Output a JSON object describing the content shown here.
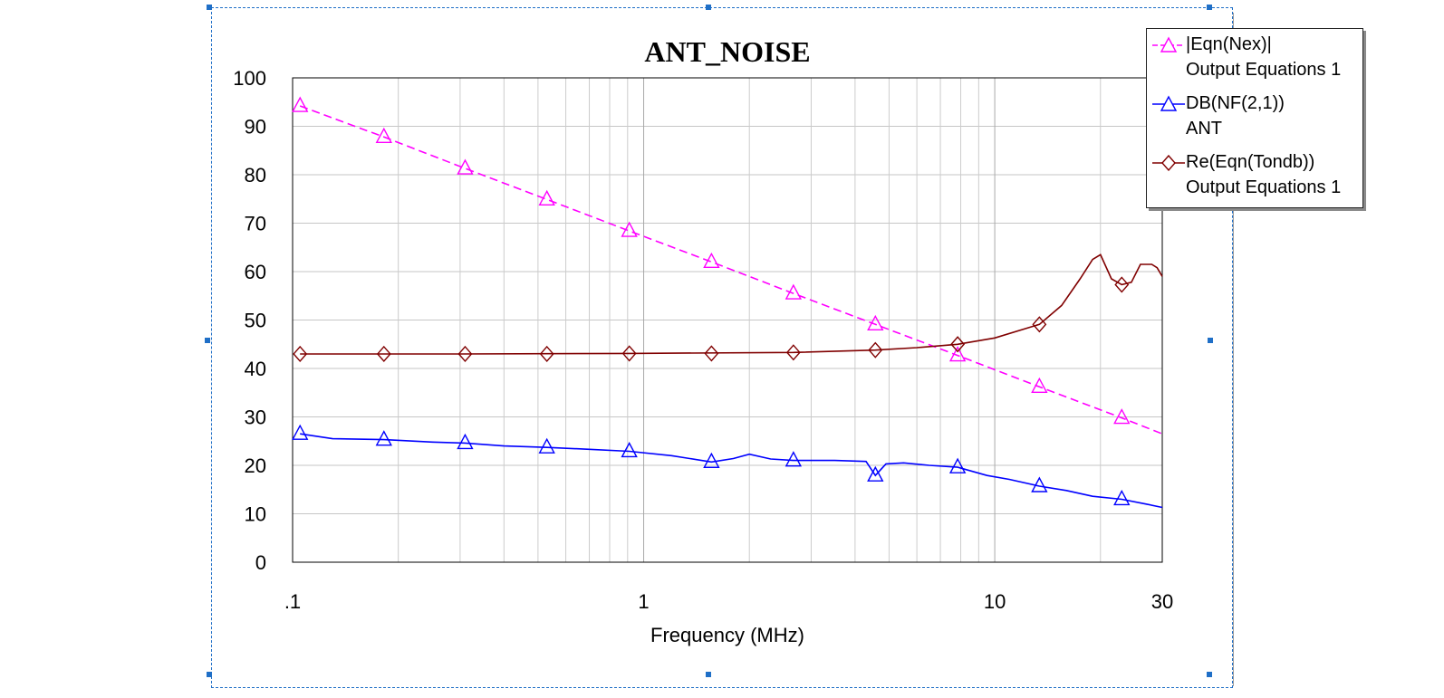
{
  "chart_data": {
    "type": "line",
    "title": "ANT_NOISE",
    "xlabel": "Frequency (MHz)",
    "ylabel": "",
    "xscale": "log",
    "xlim": [
      0.1,
      30
    ],
    "ylim": [
      0,
      100
    ],
    "x_ticks": [
      ".1",
      "1",
      "10",
      "30"
    ],
    "y_ticks": [
      "0",
      "10",
      "20",
      "30",
      "40",
      "50",
      "60",
      "70",
      "80",
      "90",
      "100"
    ],
    "grid": true,
    "legend_position": "top-right",
    "series": [
      {
        "name": "|Eqn(Nex)|",
        "subtitle": "Output Equations 1",
        "color": "#ff00ff",
        "marker": "triangle",
        "line_style": "dashed",
        "x": [
          0.105,
          0.182,
          0.31,
          0.53,
          0.91,
          1.56,
          2.67,
          4.57,
          7.84,
          13.4,
          23.0,
          30.0
        ],
        "y": [
          94.2,
          87.8,
          81.3,
          74.9,
          68.4,
          62.0,
          55.5,
          49.1,
          42.7,
          36.2,
          29.8,
          26.5
        ],
        "marker_x": [
          0.105,
          0.182,
          0.31,
          0.53,
          0.91,
          1.56,
          2.67,
          4.57,
          7.84,
          13.4,
          23.0
        ],
        "marker_y": [
          94.2,
          87.8,
          81.3,
          74.9,
          68.4,
          62.0,
          55.5,
          49.1,
          42.7,
          36.2,
          29.8
        ]
      },
      {
        "name": "DB(NF(2,1))",
        "subtitle": "ANT",
        "color": "#0000ff",
        "marker": "triangle",
        "line_style": "solid",
        "x": [
          0.105,
          0.13,
          0.182,
          0.25,
          0.31,
          0.4,
          0.53,
          0.7,
          0.91,
          1.2,
          1.56,
          1.8,
          2.0,
          2.3,
          2.67,
          3.5,
          4.3,
          4.57,
          4.9,
          5.5,
          6.5,
          7.84,
          9.5,
          11.0,
          13.4,
          16.0,
          19.0,
          23.0,
          27.0,
          30.0
        ],
        "y": [
          26.5,
          25.5,
          25.3,
          24.8,
          24.6,
          24.0,
          23.7,
          23.3,
          22.9,
          22.0,
          20.7,
          21.4,
          22.3,
          21.3,
          21.0,
          21.0,
          20.8,
          17.9,
          20.3,
          20.5,
          20.0,
          19.6,
          17.9,
          17.1,
          15.7,
          14.8,
          13.6,
          13.0,
          12.0,
          11.3
        ],
        "marker_x": [
          0.105,
          0.182,
          0.31,
          0.53,
          0.91,
          1.56,
          2.67,
          4.57,
          7.84,
          13.4,
          23.0
        ],
        "marker_y": [
          26.5,
          25.3,
          24.6,
          23.7,
          22.9,
          20.7,
          21.0,
          17.9,
          19.6,
          15.7,
          13.0
        ]
      },
      {
        "name": "Re(Eqn(Tondb))",
        "subtitle": "Output Equations 1",
        "color": "#800000",
        "marker": "diamond",
        "line_style": "solid",
        "x": [
          0.105,
          0.3,
          0.91,
          2.67,
          4.57,
          6.0,
          7.84,
          10.0,
          13.4,
          15.5,
          17.5,
          19.0,
          20.0,
          21.5,
          23.0,
          24.5,
          26.0,
          28.0,
          29.0,
          30.0
        ],
        "y": [
          43.0,
          43.0,
          43.1,
          43.3,
          43.8,
          44.3,
          45.0,
          46.3,
          49.1,
          53.0,
          58.5,
          62.5,
          63.5,
          58.5,
          57.3,
          57.8,
          61.5,
          61.5,
          60.8,
          59.0
        ],
        "marker_x": [
          0.105,
          0.182,
          0.31,
          0.53,
          0.91,
          1.56,
          2.67,
          4.57,
          7.84,
          13.4,
          23.0
        ],
        "marker_y": [
          43.0,
          43.0,
          43.0,
          43.0,
          43.1,
          43.1,
          43.3,
          43.8,
          45.0,
          49.1,
          57.3
        ]
      }
    ]
  }
}
